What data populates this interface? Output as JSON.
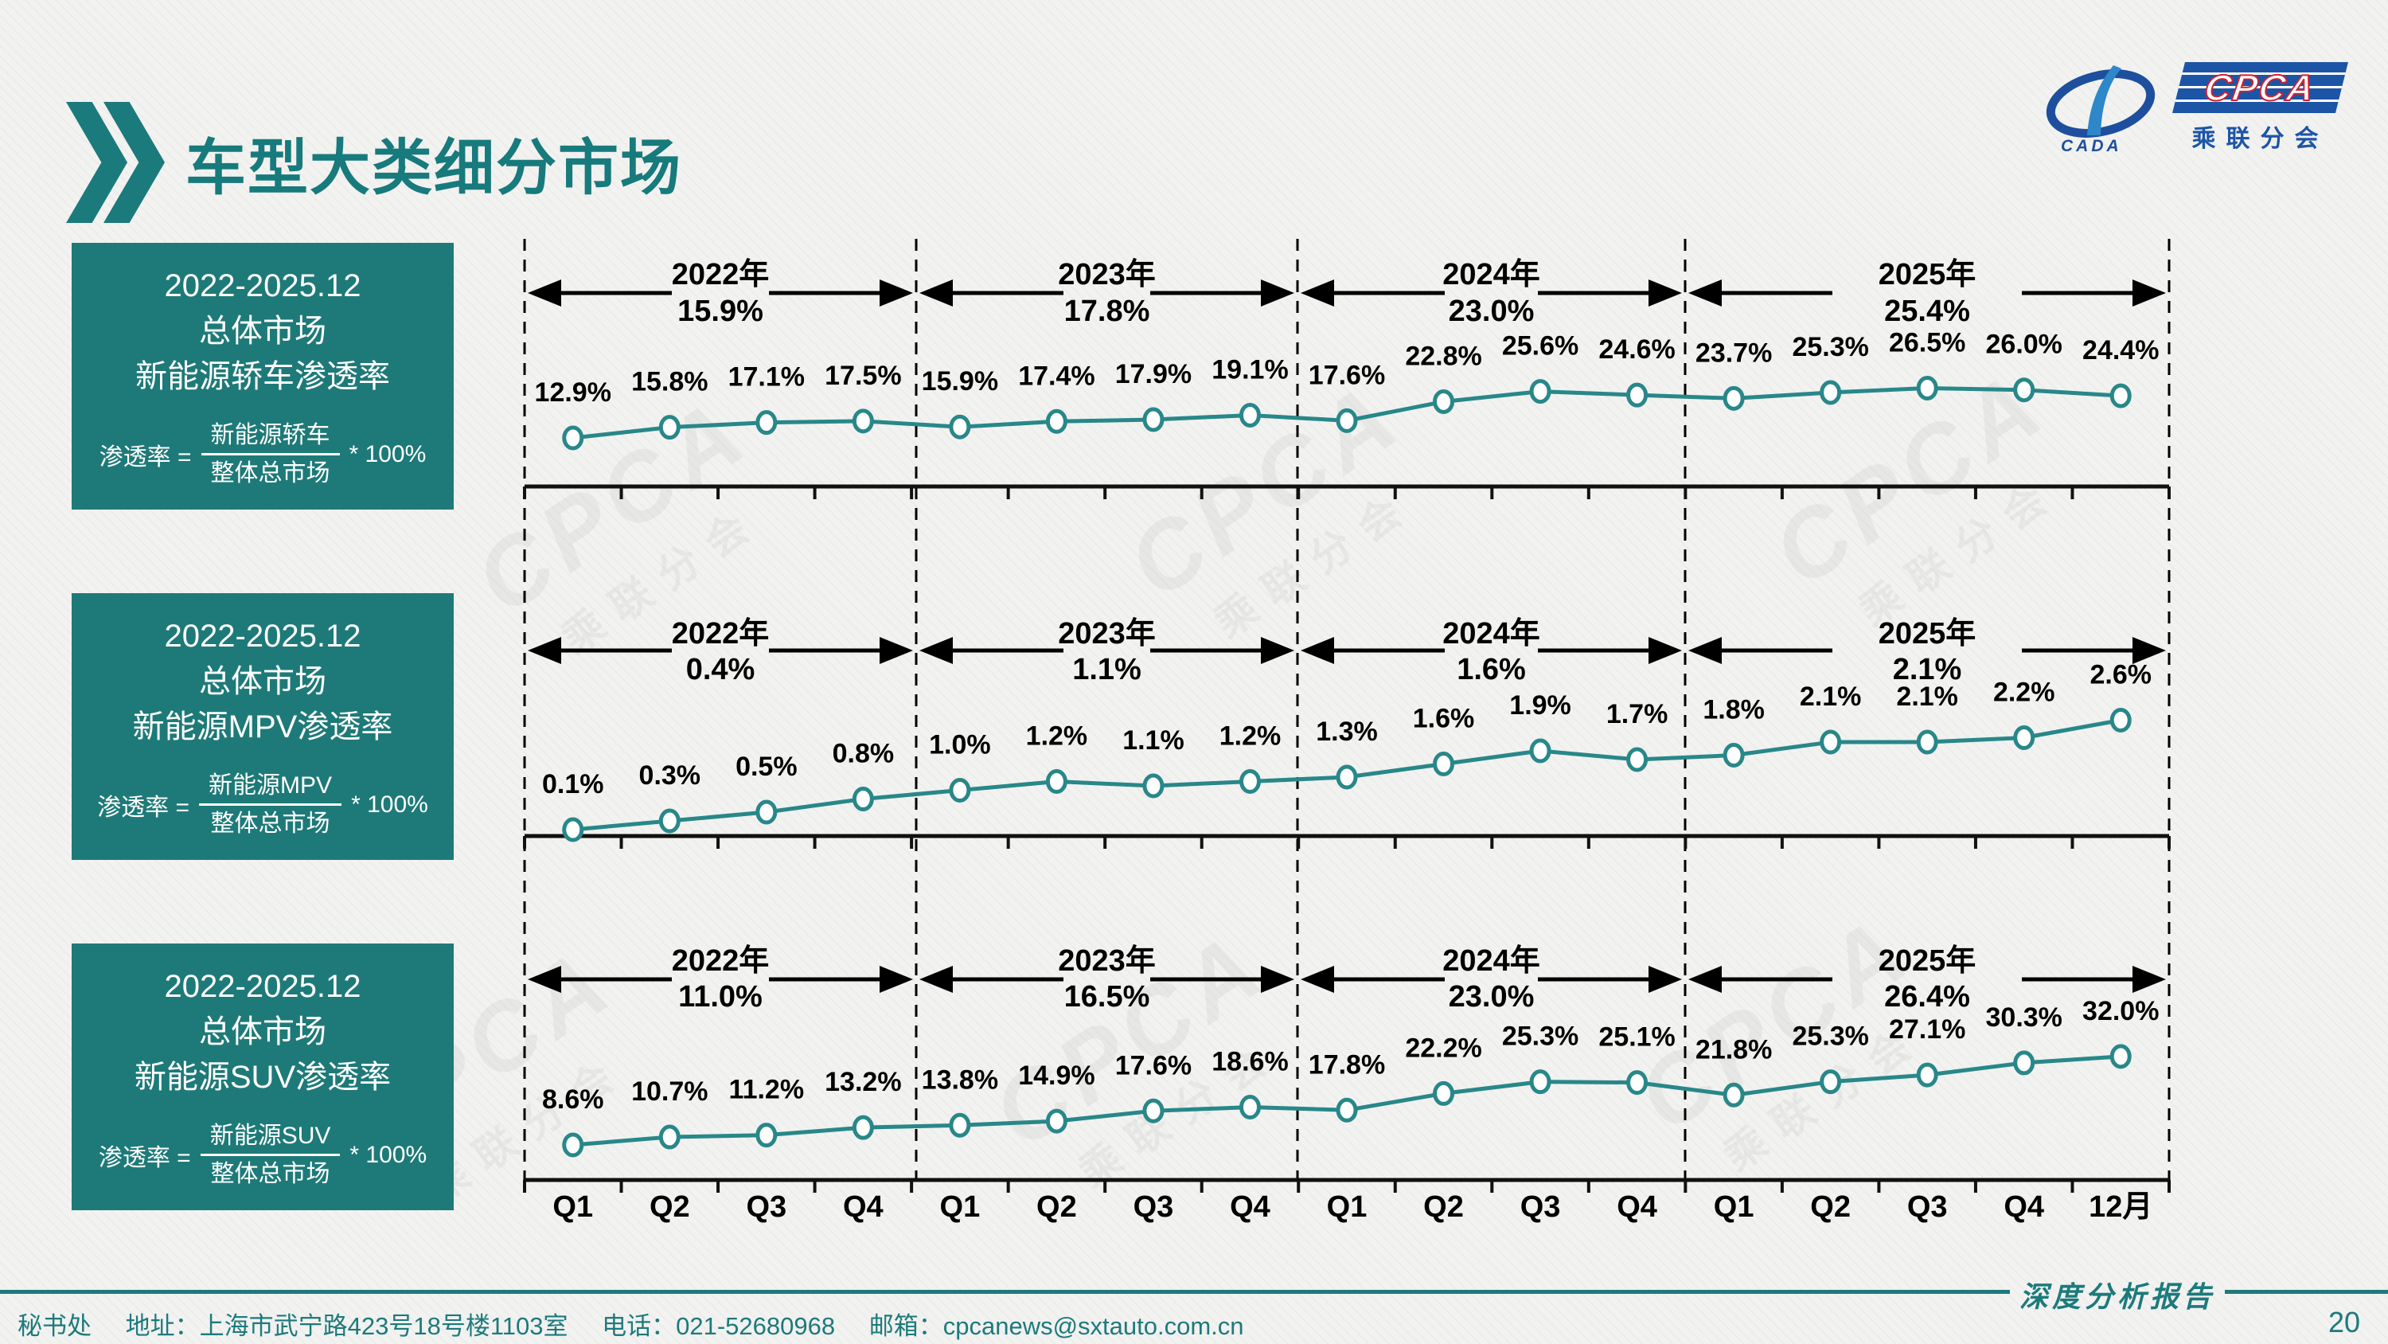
{
  "header": {
    "title": "车型大类细分市场"
  },
  "logo": {
    "wordmark": "CPCA",
    "subtitle": "乘联分会",
    "emblem": "CADA"
  },
  "watermark": {
    "line1": "CPCA",
    "line2": "乘联分会"
  },
  "panels": [
    {
      "period": "2022-2025.12",
      "market": "总体市场",
      "title": "新能源轿车渗透率",
      "formula": {
        "lhs": "渗透率 =",
        "numerator": "新能源轿车",
        "denominator": "整体总市场",
        "multiplier": "* 100%"
      }
    },
    {
      "period": "2022-2025.12",
      "market": "总体市场",
      "title": "新能源MPV渗透率",
      "formula": {
        "lhs": "渗透率 =",
        "numerator": "新能源MPV",
        "denominator": "整体总市场",
        "multiplier": "* 100%"
      }
    },
    {
      "period": "2022-2025.12",
      "market": "总体市场",
      "title": "新能源SUV渗透率",
      "formula": {
        "lhs": "渗透率 =",
        "numerator": "新能源SUV",
        "denominator": "整体总市场",
        "multiplier": "* 100%"
      }
    }
  ],
  "x_axis": [
    "Q1",
    "Q2",
    "Q3",
    "Q4",
    "Q1",
    "Q2",
    "Q3",
    "Q4",
    "Q1",
    "Q2",
    "Q3",
    "Q4",
    "Q1",
    "Q2",
    "Q3",
    "Q4",
    "12月"
  ],
  "chart_data": [
    {
      "type": "line",
      "title": "2022-2025.12 总体市场 新能源轿车渗透率",
      "unit": "%",
      "x": [
        "Q1",
        "Q2",
        "Q3",
        "Q4",
        "Q1",
        "Q2",
        "Q3",
        "Q4",
        "Q1",
        "Q2",
        "Q3",
        "Q4",
        "Q1",
        "Q2",
        "Q3",
        "Q4",
        "12月"
      ],
      "values": [
        12.9,
        15.8,
        17.1,
        17.5,
        15.9,
        17.4,
        17.9,
        19.1,
        17.6,
        22.8,
        25.6,
        24.6,
        23.7,
        25.3,
        26.5,
        26.0,
        24.4
      ],
      "point_labels": [
        "12.9%",
        "15.8%",
        "17.1%",
        "17.5%",
        "15.9%",
        "17.4%",
        "17.9%",
        "19.1%",
        "17.6%",
        "22.8%",
        "25.6%",
        "24.6%",
        "23.7%",
        "25.3%",
        "26.5%",
        "26.0%",
        "24.4%"
      ],
      "year_segments": [
        {
          "label": "2022年",
          "value": "15.9%"
        },
        {
          "label": "2023年",
          "value": "17.8%"
        },
        {
          "label": "2024年",
          "value": "23.0%"
        },
        {
          "label": "2025年",
          "value": "25.4%"
        }
      ],
      "ylim": [
        10,
        30
      ],
      "grid": false,
      "line_color": "#288789"
    },
    {
      "type": "line",
      "title": "2022-2025.12 总体市场 新能源MPV渗透率",
      "unit": "%",
      "x": [
        "Q1",
        "Q2",
        "Q3",
        "Q4",
        "Q1",
        "Q2",
        "Q3",
        "Q4",
        "Q1",
        "Q2",
        "Q3",
        "Q4",
        "Q1",
        "Q2",
        "Q3",
        "Q4",
        "12月"
      ],
      "values": [
        0.1,
        0.3,
        0.5,
        0.8,
        1.0,
        1.2,
        1.1,
        1.2,
        1.3,
        1.6,
        1.9,
        1.7,
        1.8,
        2.1,
        2.1,
        2.2,
        2.6
      ],
      "point_labels": [
        "0.1%",
        "0.3%",
        "0.5%",
        "0.8%",
        "1.0%",
        "1.2%",
        "1.1%",
        "1.2%",
        "1.3%",
        "1.6%",
        "1.9%",
        "1.7%",
        "1.8%",
        "2.1%",
        "2.1%",
        "2.2%",
        "2.6%"
      ],
      "year_segments": [
        {
          "label": "2022年",
          "value": "0.4%"
        },
        {
          "label": "2023年",
          "value": "1.1%"
        },
        {
          "label": "2024年",
          "value": "1.6%"
        },
        {
          "label": "2025年",
          "value": "2.1%"
        }
      ],
      "ylim": [
        0,
        3
      ],
      "grid": false,
      "line_color": "#288789"
    },
    {
      "type": "line",
      "title": "2022-2025.12 总体市场 新能源SUV渗透率",
      "unit": "%",
      "x": [
        "Q1",
        "Q2",
        "Q3",
        "Q4",
        "Q1",
        "Q2",
        "Q3",
        "Q4",
        "Q1",
        "Q2",
        "Q3",
        "Q4",
        "Q1",
        "Q2",
        "Q3",
        "Q4",
        "12月"
      ],
      "values": [
        8.6,
        10.7,
        11.2,
        13.2,
        13.8,
        14.9,
        17.6,
        18.6,
        17.8,
        22.2,
        25.3,
        25.1,
        21.8,
        25.3,
        27.1,
        30.3,
        32.0
      ],
      "point_labels": [
        "8.6%",
        "10.7%",
        "11.2%",
        "13.2%",
        "13.8%",
        "14.9%",
        "17.6%",
        "18.6%",
        "17.8%",
        "22.2%",
        "25.3%",
        "25.1%",
        "21.8%",
        "25.3%",
        "27.1%",
        "30.3%",
        "32.0%"
      ],
      "year_segments": [
        {
          "label": "2022年",
          "value": "11.0%"
        },
        {
          "label": "2023年",
          "value": "16.5%"
        },
        {
          "label": "2024年",
          "value": "23.0%"
        },
        {
          "label": "2025年",
          "value": "26.4%"
        }
      ],
      "ylim": [
        8,
        34
      ],
      "grid": false,
      "line_color": "#288789"
    }
  ],
  "footer": {
    "left": {
      "dept": "秘书处",
      "address": "地址：上海市武宁路423号18号楼1103室",
      "phone": "电话：021-52680968",
      "email": "邮箱：cpcanews@sxtauto.com.cn"
    },
    "report_label": "深度分析报告",
    "page_number": "20"
  },
  "colors": {
    "teal_title": "#177a7c",
    "panel": "#1e7a78",
    "line": "#288789",
    "footer": "#1c7a7c",
    "logo_blue": "#1d55a6"
  }
}
